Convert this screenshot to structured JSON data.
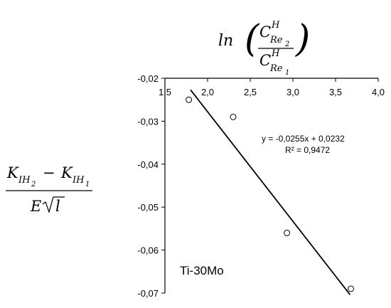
{
  "chart_data": {
    "type": "scatter",
    "title": "",
    "x_axis_label": {
      "base": "ln",
      "numerator_symbol": "C",
      "numerator_sup": "H",
      "numerator_sub": "Re",
      "numerator_sub2": "2",
      "denominator_symbol": "C",
      "denominator_sup": "H",
      "denominator_sub": "Re",
      "denominator_sub2": "1"
    },
    "y_axis_label": {
      "num_a": "K",
      "num_a_sub": "IH",
      "num_a_sub2": "2",
      "minus": "−",
      "num_b": "K",
      "num_b_sub": "IH",
      "num_b_sub2": "1",
      "den_e": "E",
      "den_l": "l"
    },
    "xlim": [
      1.5,
      4.0
    ],
    "ylim": [
      -0.07,
      -0.02
    ],
    "x_axis_position": "top",
    "x_ticks": [
      1.5,
      2.0,
      2.5,
      3.0,
      3.5,
      4.0
    ],
    "x_tick_labels": [
      "1,5",
      "2,0",
      "2,5",
      "3,0",
      "3,5",
      "4,0"
    ],
    "y_ticks": [
      -0.02,
      -0.03,
      -0.04,
      -0.05,
      -0.06,
      -0.07
    ],
    "y_tick_labels": [
      "-0,02",
      "-0,03",
      "-0,04",
      "-0,05",
      "-0,06",
      "-0,07"
    ],
    "grid": false,
    "series": [
      {
        "marker": "open-circle",
        "x": [
          1.78,
          2.3,
          2.93,
          3.68
        ],
        "y": [
          -0.025,
          -0.029,
          -0.056,
          -0.069
        ]
      }
    ],
    "trendline": {
      "slope": -0.0255,
      "intercept": 0.0232,
      "x_range": [
        1.8,
        3.67
      ],
      "equation": "y = -0,0255x + 0,0232",
      "r_squared": "R² = 0,9472"
    },
    "annotation": "Ti-30Mo",
    "colors": {
      "axis": "#000000",
      "marker": "#000000",
      "trendline": "#000000"
    }
  }
}
